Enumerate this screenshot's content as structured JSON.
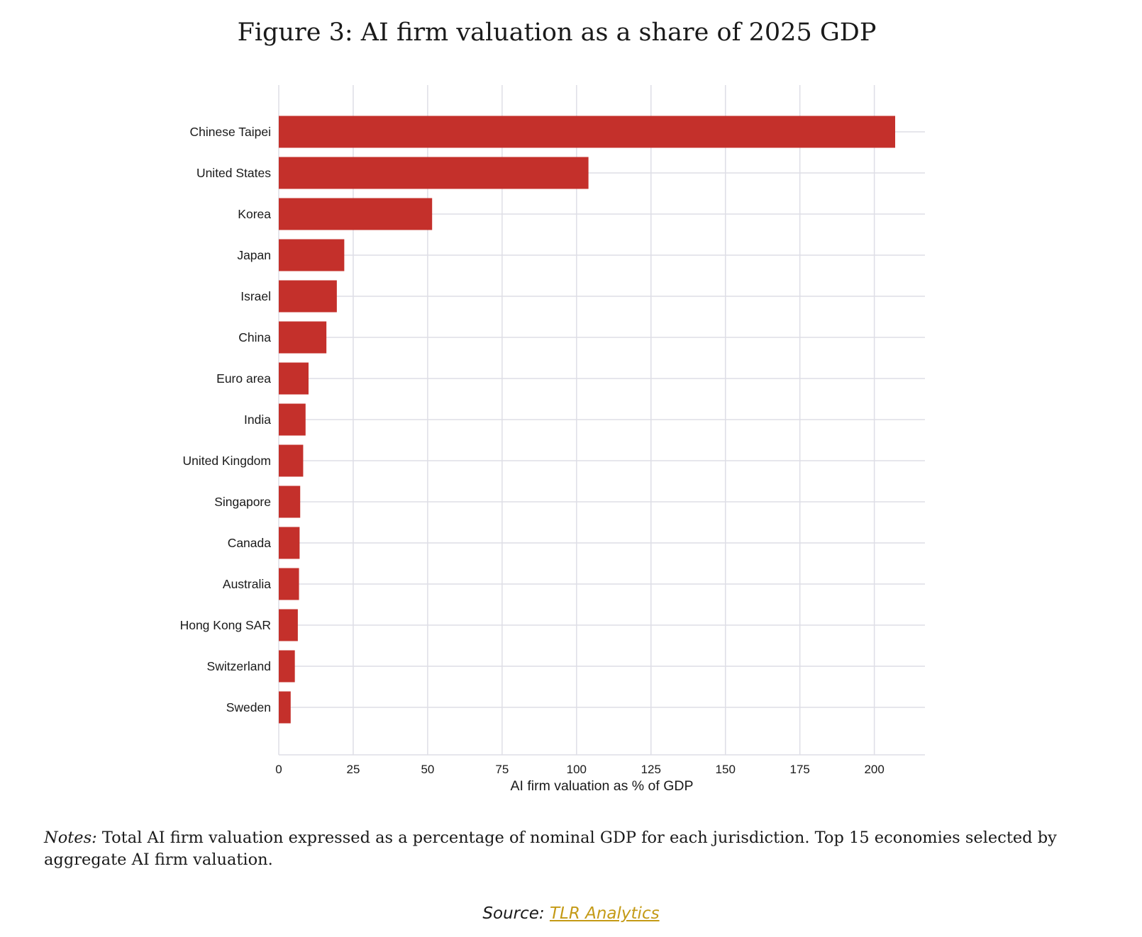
{
  "figure": {
    "title": "Figure 3:  AI firm valuation as a share of 2025 GDP"
  },
  "colors": {
    "bar": "#c4302b",
    "grid": "#dedee6",
    "axis_text": "#1a1a1a",
    "link": "#c49a16"
  },
  "chart_data": {
    "type": "bar",
    "orientation": "horizontal",
    "title": "",
    "xlabel": "AI firm valuation as % of GDP",
    "ylabel": "",
    "xlim": [
      0,
      217
    ],
    "xticks": [
      0,
      25,
      50,
      75,
      100,
      125,
      150,
      175,
      200
    ],
    "grid": true,
    "categories": [
      "Chinese Taipei",
      "United States",
      "Korea",
      "Japan",
      "Israel",
      "China",
      "Euro area",
      "India",
      "United Kingdom",
      "Singapore",
      "Canada",
      "Australia",
      "Hong Kong SAR",
      "Switzerland",
      "Sweden"
    ],
    "values": [
      207,
      104,
      51.5,
      22,
      19.5,
      16,
      10,
      9,
      8.2,
      7.2,
      7,
      6.8,
      6.4,
      5.4,
      4
    ]
  },
  "notes": {
    "label": "Notes:",
    "text": "Total AI firm valuation expressed as a percentage of nominal GDP for each jurisdiction.  Top 15 economies selected by aggregate AI firm valuation."
  },
  "source": {
    "label": "Source:",
    "link_text": "TLR Analytics"
  }
}
